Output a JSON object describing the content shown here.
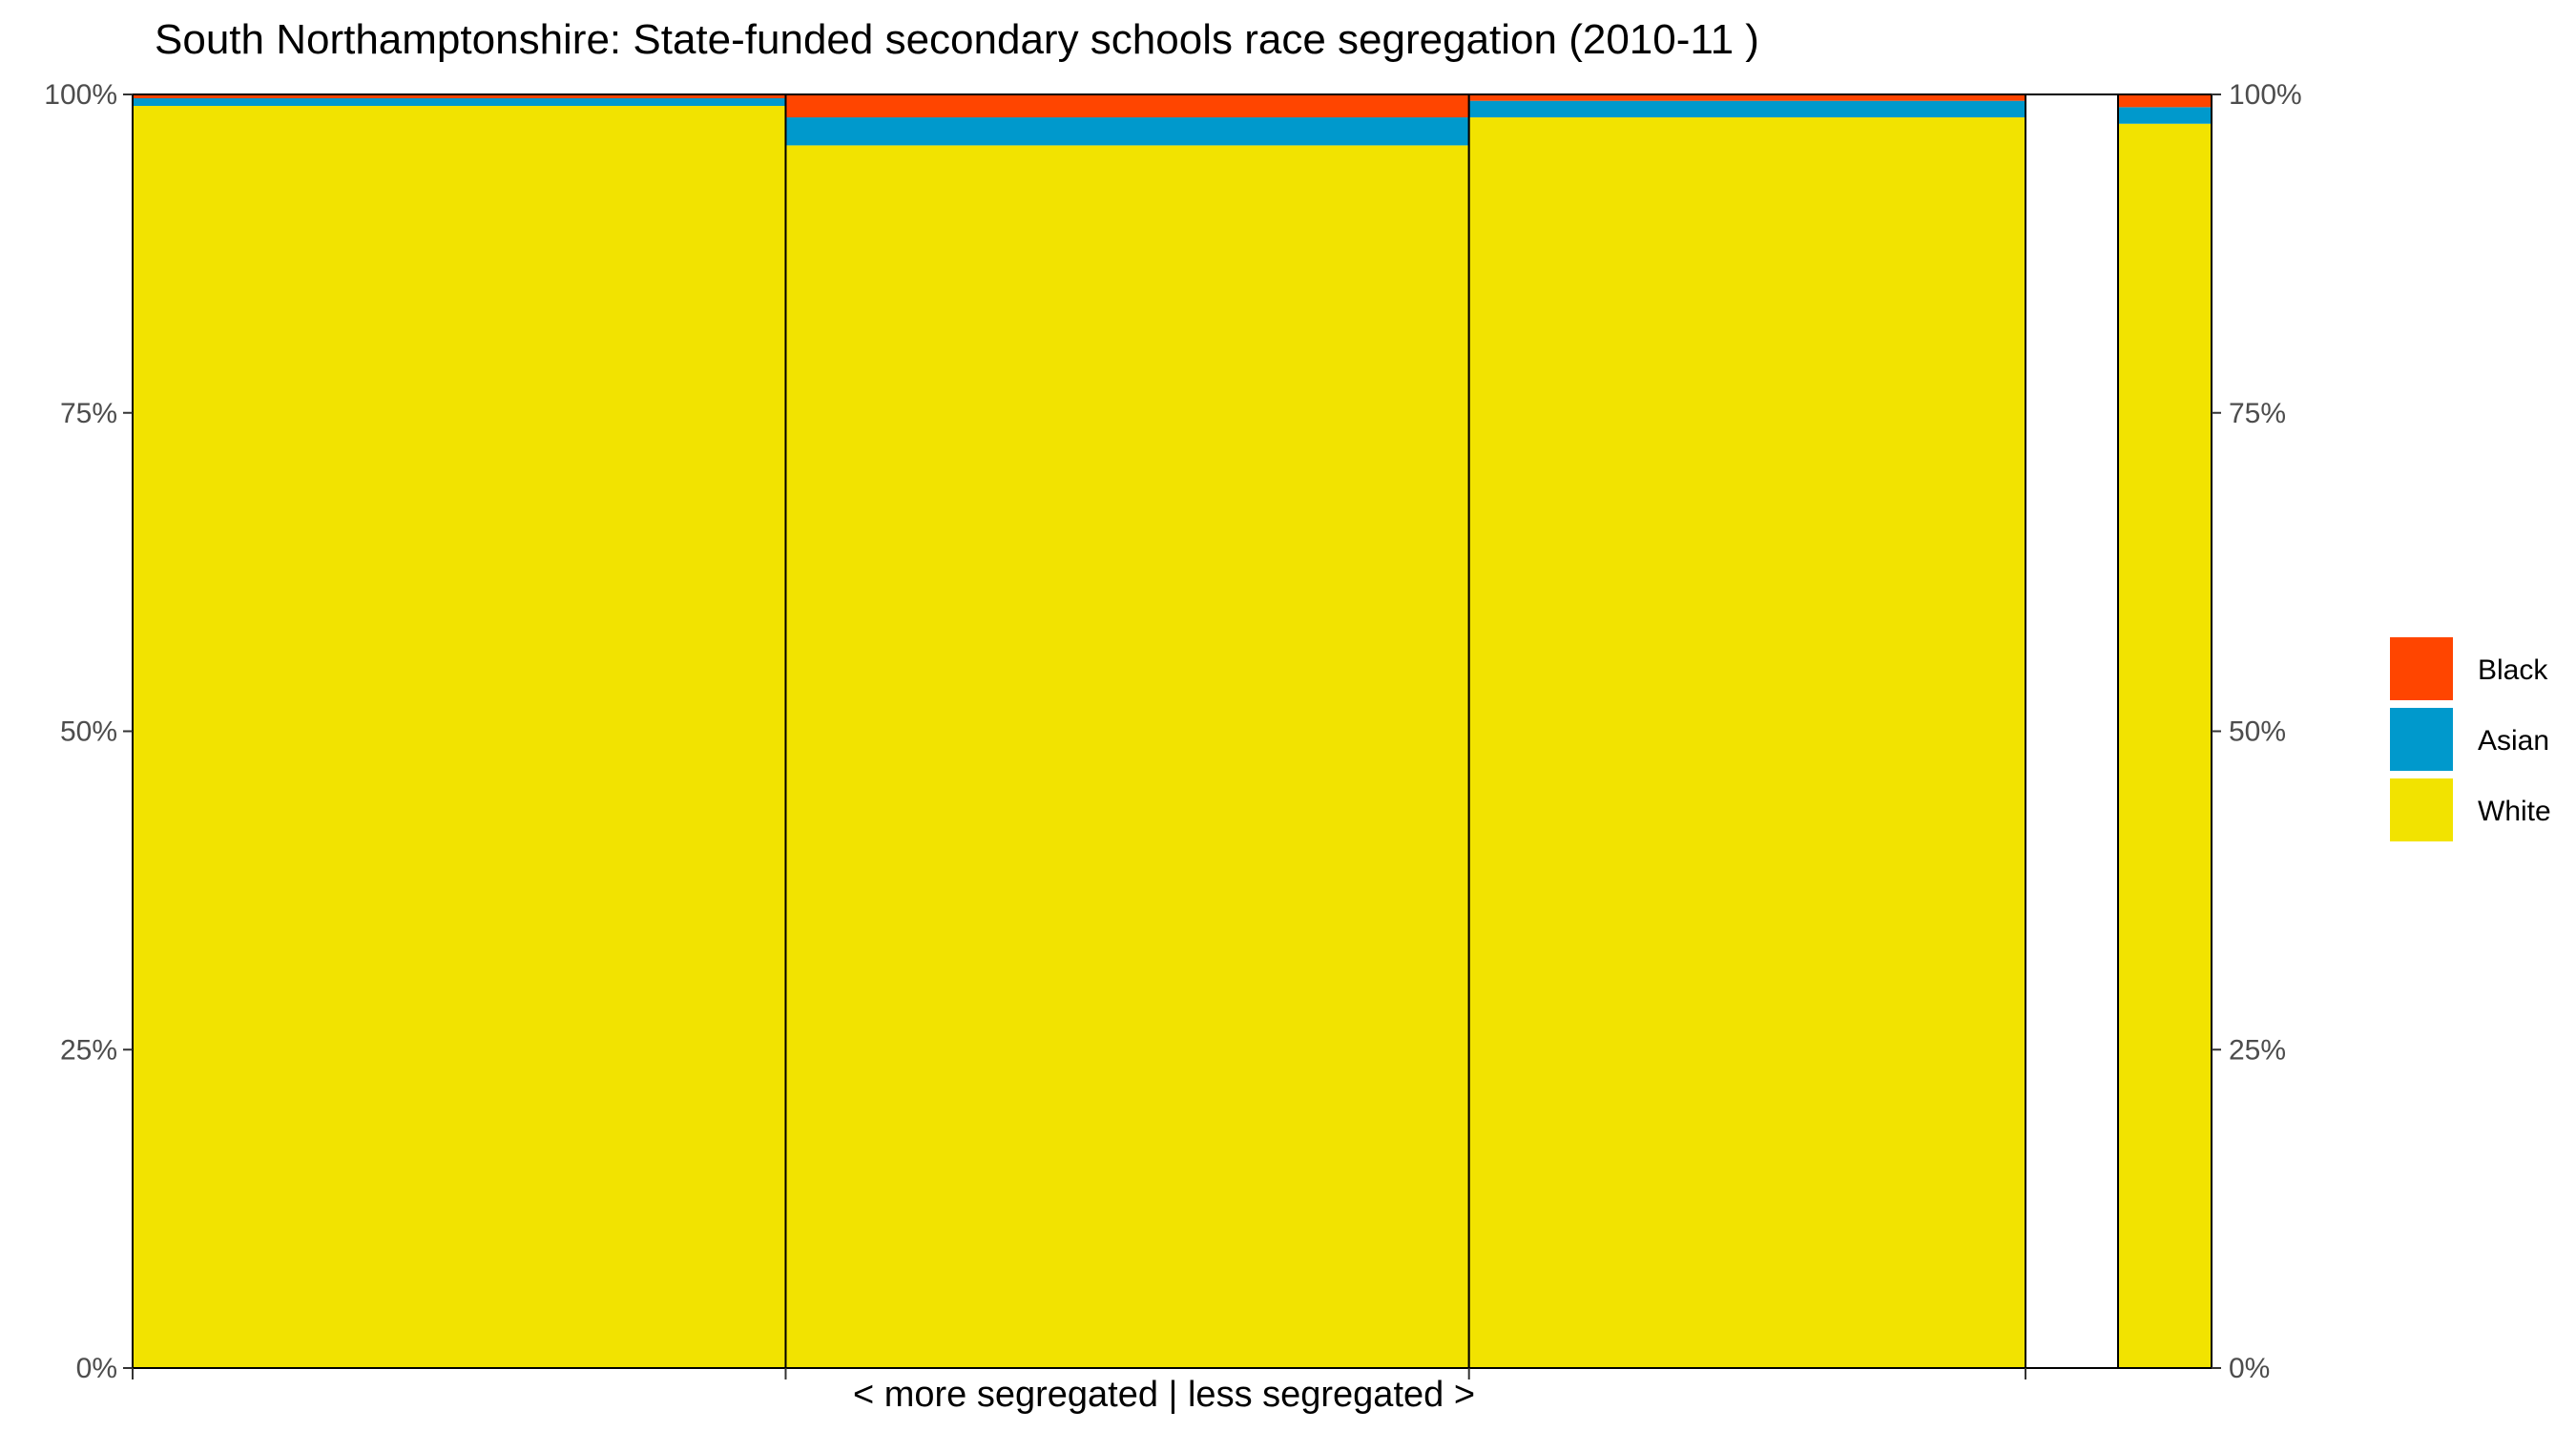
{
  "chart_data": {
    "type": "bar",
    "title": "South Northamptonshire: State-funded secondary schools race segregation (2010-11 )",
    "xlabel": "< more segregated | less segregated >",
    "ylabel": "",
    "ylim": [
      0,
      1
    ],
    "y_ticks": [
      "0%",
      "25%",
      "50%",
      "75%",
      "100%"
    ],
    "y_tick_values": [
      0,
      0.25,
      0.5,
      0.75,
      1.0
    ],
    "layout": "variable-width stacked columns (mosaic), axis labels on both left and right",
    "grid": false,
    "legend_position": "right",
    "series": [
      {
        "name": "Black",
        "color": "#FF4500"
      },
      {
        "name": "Asian",
        "color": "#0099CC"
      },
      {
        "name": "White",
        "color": "#F2E300"
      }
    ],
    "schools": [
      {
        "share_of_pupils": 0.345,
        "values": {
          "White": 0.991,
          "Asian": 0.006,
          "Black": 0.003
        }
      },
      {
        "share_of_pupils": 0.361,
        "values": {
          "White": 0.96,
          "Asian": 0.022,
          "Black": 0.018
        }
      },
      {
        "share_of_pupils": 0.294,
        "values": {
          "White": 0.982,
          "Asian": 0.013,
          "Black": 0.005
        }
      }
    ],
    "total_column": {
      "values": {
        "White": 0.977,
        "Asian": 0.013,
        "Black": 0.01
      }
    },
    "border_color": "#000000"
  }
}
